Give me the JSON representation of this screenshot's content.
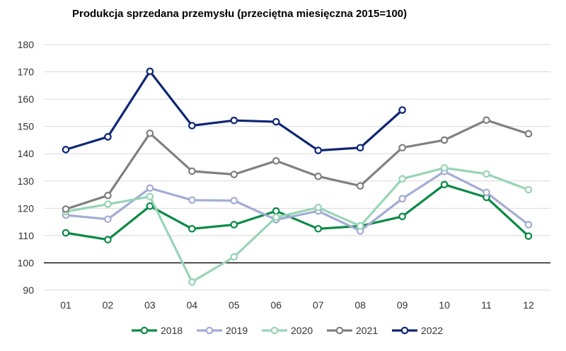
{
  "chart_data": {
    "type": "line",
    "title": "Produkcja sprzedana przemysłu (przeciętna miesięczna 2015=100)",
    "xlabel": "",
    "ylabel": "",
    "categories": [
      "01",
      "02",
      "03",
      "04",
      "05",
      "06",
      "07",
      "08",
      "09",
      "10",
      "11",
      "12"
    ],
    "ylim": [
      90,
      180
    ],
    "yticks": [
      "90",
      "100",
      "110",
      "120",
      "130",
      "140",
      "150",
      "160",
      "170",
      "180"
    ],
    "reference_line": 100,
    "grid": true,
    "legend_position": "bottom",
    "series": [
      {
        "name": "2018",
        "color": "#0a8a46",
        "values": [
          111.0,
          108.5,
          120.8,
          112.5,
          114.0,
          119.0,
          112.5,
          113.5,
          117.0,
          128.7,
          124.0,
          109.8
        ]
      },
      {
        "name": "2019",
        "color": "#a4acd4",
        "values": [
          117.5,
          116.0,
          127.4,
          123.0,
          122.8,
          115.8,
          119.0,
          111.7,
          123.5,
          133.5,
          125.8,
          114.0
        ]
      },
      {
        "name": "2020",
        "color": "#98d4b6",
        "values": [
          118.8,
          121.5,
          124.3,
          93.0,
          102.2,
          116.7,
          120.3,
          113.5,
          130.8,
          134.8,
          132.6,
          126.8
        ]
      },
      {
        "name": "2021",
        "color": "#808080",
        "values": [
          119.7,
          124.7,
          147.5,
          133.6,
          132.4,
          137.4,
          131.7,
          128.2,
          142.2,
          145.0,
          152.3,
          147.3
        ]
      },
      {
        "name": "2022",
        "color": "#0d2675",
        "values": [
          141.5,
          146.2,
          170.2,
          150.3,
          152.2,
          151.7,
          141.2,
          142.2,
          156.0,
          null,
          null,
          null
        ]
      }
    ]
  }
}
